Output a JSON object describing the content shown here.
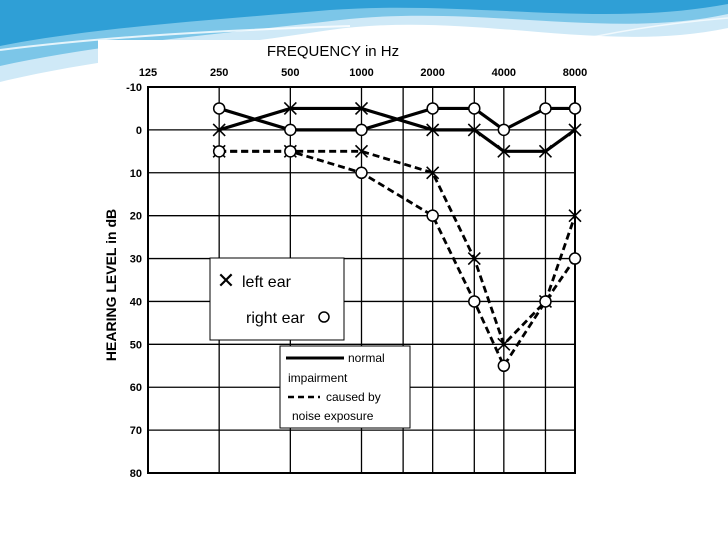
{
  "colors": {
    "slide_background": "#ffffff",
    "wave_light": "#cfe9f7",
    "wave_mid": "#7cc6e8",
    "wave_dark": "#2f9fd6",
    "ink": "#000000"
  },
  "chart_data": {
    "type": "line",
    "title": "FREQUENCY in Hz",
    "ylabel": "HEARING LEVEL in dB",
    "x_ticks": [
      "125",
      "250",
      "500",
      "1000",
      "2000",
      "4000",
      "8000"
    ],
    "x_tick_values": [
      125,
      250,
      500,
      1000,
      2000,
      4000,
      8000
    ],
    "x_gridlines": [
      250,
      500,
      1000,
      1500,
      2000,
      3000,
      4000,
      6000,
      8000
    ],
    "y_ticks": [
      "-10",
      "0",
      "10",
      "20",
      "30",
      "40",
      "50",
      "60",
      "70",
      "80"
    ],
    "ylim": [
      -10,
      80
    ],
    "xlim": [
      125,
      8000
    ],
    "x_scale": "log",
    "y_inverted": true,
    "grid": true,
    "x": [
      250,
      500,
      1000,
      2000,
      3000,
      4000,
      6000,
      8000
    ],
    "series": [
      {
        "name": "left ear",
        "marker": "x",
        "line_style": "solid",
        "values": [
          0,
          -5,
          -5,
          0,
          0,
          5,
          5,
          0
        ]
      },
      {
        "name": "right ear",
        "marker": "o",
        "line_style": "solid",
        "values": [
          -5,
          0,
          0,
          -5,
          -5,
          0,
          -5,
          -5
        ]
      },
      {
        "name": "left ear",
        "marker": "x",
        "line_style": "dashed",
        "values": [
          5,
          5,
          5,
          10,
          30,
          50,
          40,
          20
        ]
      },
      {
        "name": "right ear",
        "marker": "o",
        "line_style": "dashed",
        "values": [
          5,
          5,
          10,
          20,
          40,
          55,
          40,
          30
        ]
      }
    ],
    "legend": {
      "markers": {
        "left_ear": "left ear",
        "right_ear": "right ear"
      },
      "lines": {
        "solid_label": "normal",
        "dashed_label_lines": [
          "impairment",
          "caused by",
          "noise exposure"
        ]
      },
      "placement": "lower-left"
    }
  }
}
